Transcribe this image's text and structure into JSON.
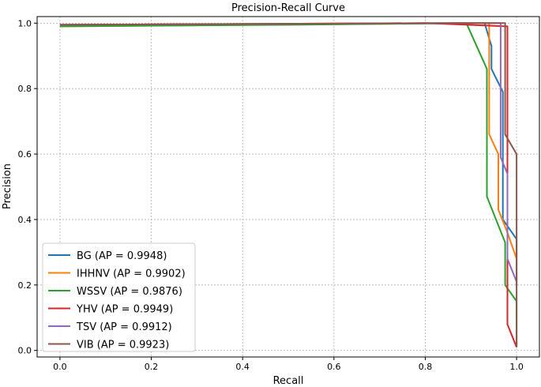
{
  "chart_data": {
    "type": "line",
    "title": "Precision-Recall Curve",
    "xlabel": "Recall",
    "ylabel": "Precision",
    "xlim": [
      -0.05,
      1.05
    ],
    "ylim": [
      -0.02,
      1.02
    ],
    "xticks": [
      0.0,
      0.2,
      0.4,
      0.6,
      0.8,
      1.0
    ],
    "xtick_labels": [
      "0.0",
      "0.2",
      "0.4",
      "0.6",
      "0.8",
      "1.0"
    ],
    "yticks": [
      0.0,
      0.2,
      0.4,
      0.6,
      0.8,
      1.0
    ],
    "ytick_labels": [
      "0.0",
      "0.2",
      "0.4",
      "0.6",
      "0.8",
      "1.0"
    ],
    "grid": true,
    "legend_position": "lower-left",
    "series": [
      {
        "name": "BG",
        "label": "BG (AP = 0.9948)",
        "color": "#1f77b4",
        "x": [
          0.0,
          0.9,
          0.93,
          0.945,
          0.945,
          0.97,
          0.97,
          0.98,
          1.0,
          1.0
        ],
        "y": [
          0.995,
          1.0,
          1.0,
          0.93,
          0.86,
          0.79,
          0.4,
          0.38,
          0.34,
          0.2
        ]
      },
      {
        "name": "IHHNV",
        "label": "IHHNV (AP = 0.9902)",
        "color": "#ff7f0e",
        "x": [
          0.0,
          0.9,
          0.94,
          0.94,
          0.96,
          0.96,
          0.98,
          1.0
        ],
        "y": [
          0.99,
          1.0,
          1.0,
          0.66,
          0.6,
          0.43,
          0.36,
          0.28
        ]
      },
      {
        "name": "WSSV",
        "label": "WSSV (AP = 0.9876)",
        "color": "#2ca02c",
        "x": [
          0.0,
          0.5,
          0.89,
          0.935,
          0.935,
          0.975,
          0.975,
          1.0,
          1.0
        ],
        "y": [
          0.99,
          0.995,
          1.0,
          0.86,
          0.47,
          0.33,
          0.2,
          0.15,
          0.01
        ]
      },
      {
        "name": "YHV",
        "label": "YHV (AP = 0.9949)",
        "color": "#d62728",
        "x": [
          0.0,
          0.8,
          0.98,
          0.98,
          0.98,
          1.0
        ],
        "y": [
          0.995,
          1.0,
          0.99,
          0.6,
          0.08,
          0.01
        ]
      },
      {
        "name": "TSV",
        "label": "TSV (AP = 0.9912)",
        "color": "#9467bd",
        "x": [
          0.0,
          0.9,
          0.965,
          0.965,
          0.98,
          0.98,
          1.0
        ],
        "y": [
          0.995,
          1.0,
          1.0,
          0.59,
          0.54,
          0.28,
          0.21
        ]
      },
      {
        "name": "VIB",
        "label": "VIB (AP = 0.9923)",
        "color": "#8c564b",
        "x": [
          0.0,
          0.8,
          0.975,
          0.975,
          1.0,
          1.0
        ],
        "y": [
          0.995,
          1.0,
          1.0,
          0.66,
          0.6,
          0.01
        ]
      }
    ]
  }
}
